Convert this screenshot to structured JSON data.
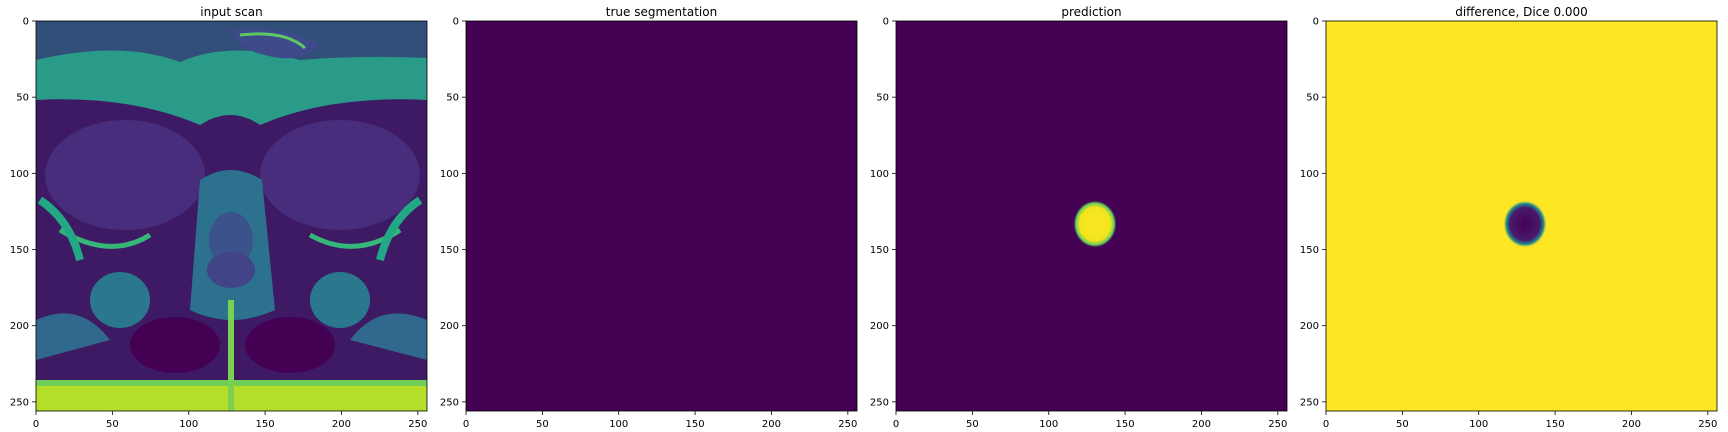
{
  "panels": [
    {
      "title": "input scan",
      "kind": "mri"
    },
    {
      "title": "true segmentation",
      "kind": "empty"
    },
    {
      "title": "prediction",
      "kind": "blob"
    },
    {
      "title": "difference, Dice 0.000",
      "kind": "inverse-blob"
    }
  ],
  "axes": {
    "x_ticks": [
      "0",
      "50",
      "100",
      "150",
      "200",
      "250"
    ],
    "y_ticks": [
      "0",
      "50",
      "100",
      "150",
      "200",
      "250"
    ],
    "range": [
      0,
      256
    ]
  },
  "colormap": {
    "low": "#440154",
    "mid": "#21918c",
    "high": "#fde725"
  },
  "blob": {
    "x": 130,
    "y": 133
  }
}
